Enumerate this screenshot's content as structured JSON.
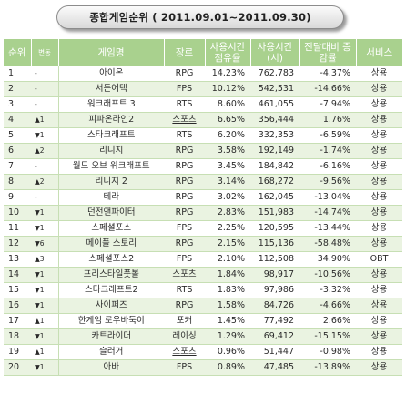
{
  "title": "종합게임순위  ( 2011.09.01~2011.09.30)",
  "headers": {
    "rank": "순위",
    "change": "변동",
    "game": "게임명",
    "genre": "장르",
    "share": "사용시간 점유율",
    "time": "사용시간 (시)",
    "diff": "전달대비 증감률",
    "service": "서비스"
  },
  "rows": [
    {
      "rank": "1",
      "change": "-",
      "game": "아이온",
      "genre": "RPG",
      "share": "14.23%",
      "time": "762,783",
      "diff": "-4.37%",
      "service": "상용"
    },
    {
      "rank": "2",
      "change": "-",
      "game": "서든어택",
      "genre": "FPS",
      "share": "10.12%",
      "time": "542,531",
      "diff": "-14.66%",
      "service": "상용"
    },
    {
      "rank": "3",
      "change": "-",
      "game": "워크래프트 3",
      "genre": "RTS",
      "share": "8.60%",
      "time": "461,055",
      "diff": "-7.94%",
      "service": "상용"
    },
    {
      "rank": "4",
      "change": "▲1",
      "game": "피파온라인2",
      "genre": "스포츠",
      "share": "6.65%",
      "time": "356,444",
      "diff": "1.76%",
      "service": "상용"
    },
    {
      "rank": "5",
      "change": "▼1",
      "game": "스타크래프트",
      "genre": "RTS",
      "share": "6.20%",
      "time": "332,353",
      "diff": "-6.59%",
      "service": "상용"
    },
    {
      "rank": "6",
      "change": "▲2",
      "game": "리니지",
      "genre": "RPG",
      "share": "3.58%",
      "time": "192,149",
      "diff": "-1.74%",
      "service": "상용"
    },
    {
      "rank": "7",
      "change": "-",
      "game": "월드 오브 워크래프트",
      "genre": "RPG",
      "share": "3.45%",
      "time": "184,842",
      "diff": "-6.16%",
      "service": "상용"
    },
    {
      "rank": "8",
      "change": "▲2",
      "game": "리니지 2",
      "genre": "RPG",
      "share": "3.14%",
      "time": "168,272",
      "diff": "-9.56%",
      "service": "상용"
    },
    {
      "rank": "9",
      "change": "-",
      "game": "테라",
      "genre": "RPG",
      "share": "3.02%",
      "time": "162,045",
      "diff": "-13.04%",
      "service": "상용"
    },
    {
      "rank": "10",
      "change": "▼1",
      "game": "던전앤파이터",
      "genre": "RPG",
      "share": "2.83%",
      "time": "151,983",
      "diff": "-14.74%",
      "service": "상용"
    },
    {
      "rank": "11",
      "change": "▼1",
      "game": "스페셜포스",
      "genre": "FPS",
      "share": "2.25%",
      "time": "120,595",
      "diff": "-13.44%",
      "service": "상용"
    },
    {
      "rank": "12",
      "change": "▼6",
      "game": "메이플 스토리",
      "genre": "RPG",
      "share": "2.15%",
      "time": "115,136",
      "diff": "-58.48%",
      "service": "상용"
    },
    {
      "rank": "13",
      "change": "▲3",
      "game": "스페셜포스2",
      "genre": "FPS",
      "share": "2.10%",
      "time": "112,508",
      "diff": "34.90%",
      "service": "OBT"
    },
    {
      "rank": "14",
      "change": "▼1",
      "game": "프리스타일풋볼",
      "genre": "스포츠",
      "share": "1.84%",
      "time": "98,917",
      "diff": "-10.56%",
      "service": "상용"
    },
    {
      "rank": "15",
      "change": "▼1",
      "game": "스타크래프트2",
      "genre": "RTS",
      "share": "1.83%",
      "time": "97,986",
      "diff": "-3.32%",
      "service": "상용"
    },
    {
      "rank": "16",
      "change": "▼1",
      "game": "사이퍼즈",
      "genre": "RPG",
      "share": "1.58%",
      "time": "84,726",
      "diff": "-4.66%",
      "service": "상용"
    },
    {
      "rank": "17",
      "change": "▲1",
      "game": "한게임 로우바둑이",
      "genre": "포커",
      "share": "1.45%",
      "time": "77,492",
      "diff": "2.66%",
      "service": "상용"
    },
    {
      "rank": "18",
      "change": "▼1",
      "game": "카트라이더",
      "genre": "레이싱",
      "share": "1.29%",
      "time": "69,412",
      "diff": "-15.15%",
      "service": "상용"
    },
    {
      "rank": "19",
      "change": "▲1",
      "game": "슬러거",
      "genre": "스포츠",
      "share": "0.96%",
      "time": "51,447",
      "diff": "-0.98%",
      "service": "상용"
    },
    {
      "rank": "20",
      "change": "▼1",
      "game": "아바",
      "genre": "FPS",
      "share": "0.89%",
      "time": "47,485",
      "diff": "-13.89%",
      "service": "상용"
    }
  ],
  "colors": {
    "header": "#a9d18e",
    "alt_row": "#eaf3e1",
    "row_border": "#c7dfb4"
  }
}
